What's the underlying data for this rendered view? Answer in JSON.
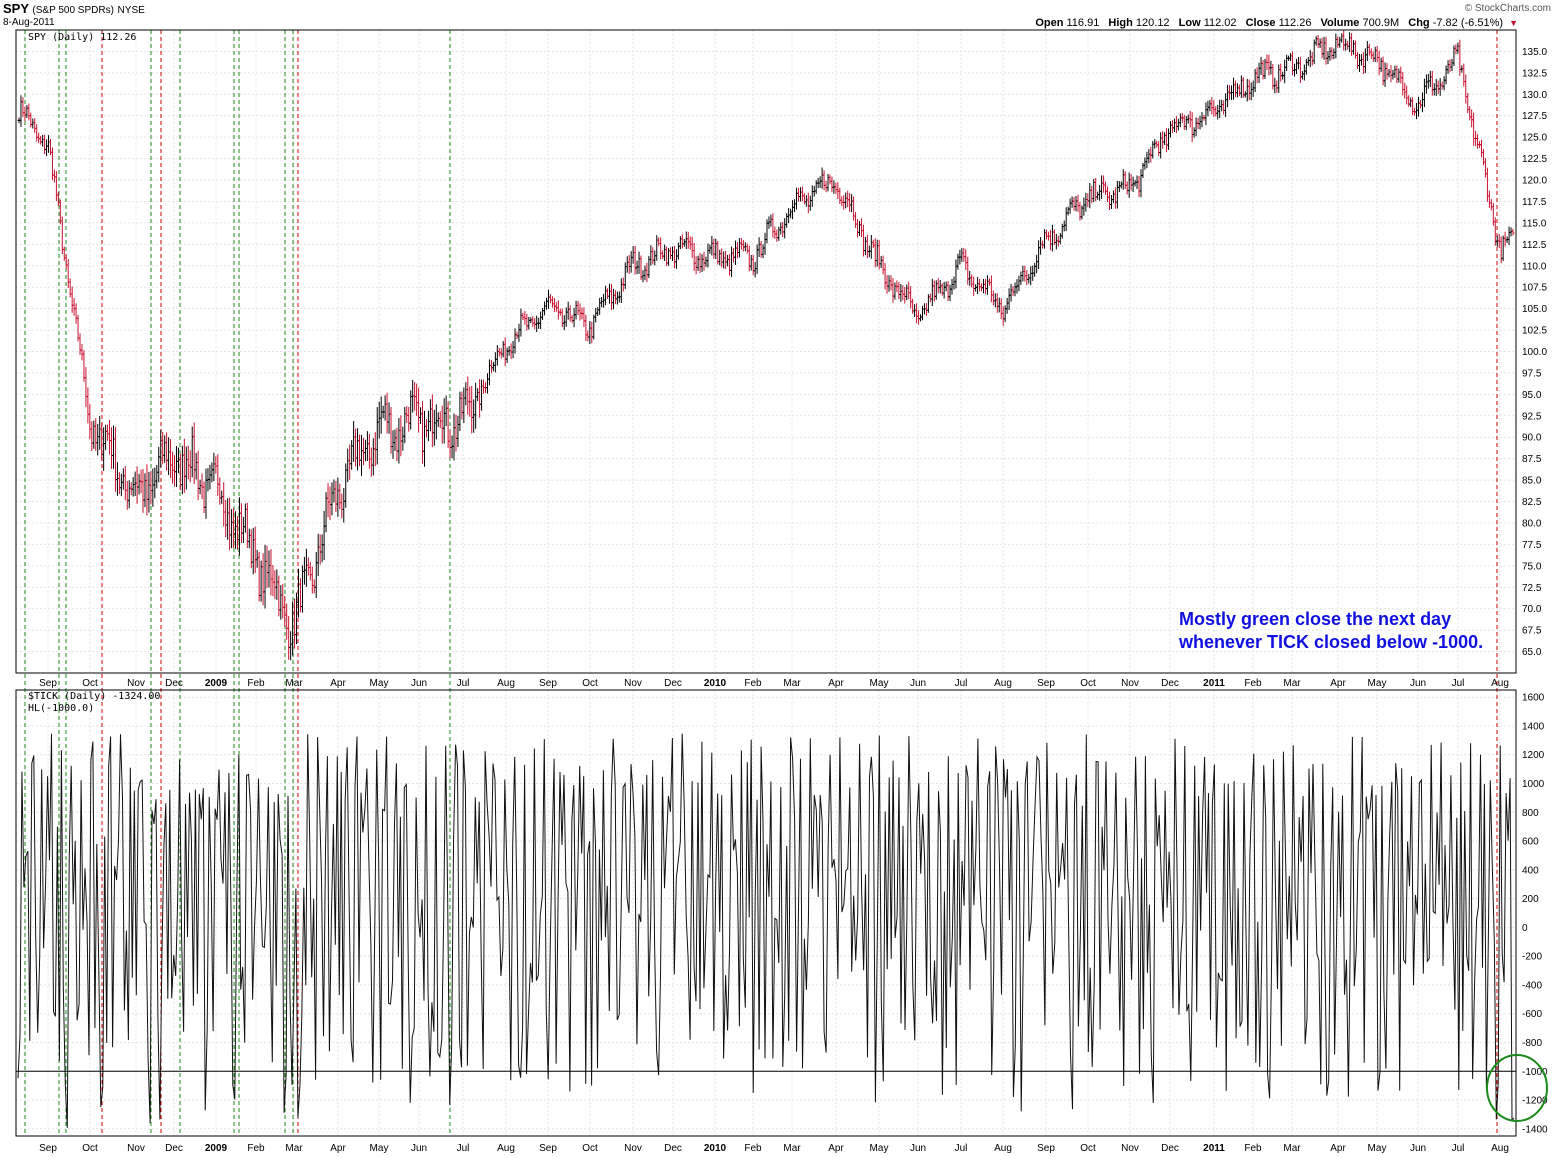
{
  "header": {
    "symbol": "SPY",
    "symbol_desc": "(S&P 500 SPDRs)",
    "exchange": "NYSE",
    "date": "8-Aug-2011",
    "brand": "© StockCharts.com",
    "open_label": "Open",
    "open": "116.91",
    "high_label": "High",
    "high": "120.12",
    "low_label": "Low",
    "low": "112.02",
    "close_label": "Close",
    "close": "112.26",
    "volume_label": "Volume",
    "volume": "700.9M",
    "chg_label": "Chg",
    "chg": "-7.82 (-6.51%)",
    "chg_direction": "down"
  },
  "annotation": {
    "line1": "Mostly green close the next day",
    "line2": "whenever TICK closed below -1000."
  },
  "colors": {
    "up_bar": "#000000",
    "down_bar": "#c8102e",
    "green_marker": "#1a8a1a",
    "red_marker": "#cc0000",
    "annotation": "#1010e0",
    "circle": "#1a8a1a"
  },
  "chart_data": [
    {
      "type": "ohlc",
      "legend": "SPY (Daily) 112.26",
      "ylim": [
        62.5,
        137.5
      ],
      "yticks": [
        "65.0",
        "67.5",
        "70.0",
        "72.5",
        "75.0",
        "77.5",
        "80.0",
        "82.5",
        "85.0",
        "87.5",
        "90.0",
        "92.5",
        "95.0",
        "97.5",
        "100.0",
        "102.5",
        "105.0",
        "107.5",
        "110.0",
        "112.5",
        "115.0",
        "117.5",
        "120.0",
        "122.5",
        "125.0",
        "127.5",
        "130.0",
        "132.5",
        "135.0"
      ],
      "x_ticks": [
        {
          "label": "Sep",
          "bold": false
        },
        {
          "label": "Oct",
          "bold": false
        },
        {
          "label": "Nov",
          "bold": false
        },
        {
          "label": "Dec",
          "bold": false
        },
        {
          "label": "2009",
          "bold": true
        },
        {
          "label": "Feb",
          "bold": false
        },
        {
          "label": "Mar",
          "bold": false
        },
        {
          "label": "Apr",
          "bold": false
        },
        {
          "label": "May",
          "bold": false
        },
        {
          "label": "Jun",
          "bold": false
        },
        {
          "label": "Jul",
          "bold": false
        },
        {
          "label": "Aug",
          "bold": false
        },
        {
          "label": "Sep",
          "bold": false
        },
        {
          "label": "Oct",
          "bold": false
        },
        {
          "label": "Nov",
          "bold": false
        },
        {
          "label": "Dec",
          "bold": false
        },
        {
          "label": "2010",
          "bold": true
        },
        {
          "label": "Feb",
          "bold": false
        },
        {
          "label": "Mar",
          "bold": false
        },
        {
          "label": "Apr",
          "bold": false
        },
        {
          "label": "May",
          "bold": false
        },
        {
          "label": "Jun",
          "bold": false
        },
        {
          "label": "Jul",
          "bold": false
        },
        {
          "label": "Aug",
          "bold": false
        },
        {
          "label": "Sep",
          "bold": false
        },
        {
          "label": "Oct",
          "bold": false
        },
        {
          "label": "Nov",
          "bold": false
        },
        {
          "label": "Dec",
          "bold": false
        },
        {
          "label": "2011",
          "bold": true
        },
        {
          "label": "Feb",
          "bold": false
        },
        {
          "label": "Mar",
          "bold": false
        },
        {
          "label": "Apr",
          "bold": false
        },
        {
          "label": "May",
          "bold": false
        },
        {
          "label": "Jun",
          "bold": false
        },
        {
          "label": "Jul",
          "bold": false
        },
        {
          "label": "Aug",
          "bold": false
        }
      ],
      "close_path": [
        [
          "Aug-2008",
          128
        ],
        [
          "Sep-2008",
          124
        ],
        [
          "Oct-2008",
          92
        ],
        [
          "Nov-2008",
          83
        ],
        [
          "Dec-2008",
          88
        ],
        [
          "Jan-2009",
          84
        ],
        [
          "Feb-2009",
          76
        ],
        [
          "Mar-2009",
          68
        ],
        [
          "Apr-2009",
          84
        ],
        [
          "May-2009",
          91
        ],
        [
          "Jun-2009",
          92
        ],
        [
          "Jul-2009",
          92
        ],
        [
          "Aug-2009",
          101
        ],
        [
          "Sep-2009",
          105
        ],
        [
          "Oct-2009",
          103
        ],
        [
          "Nov-2009",
          110
        ],
        [
          "Dec-2009",
          112
        ],
        [
          "Jan-2010",
          111
        ],
        [
          "Feb-2010",
          111
        ],
        [
          "Mar-2010",
          117
        ],
        [
          "Apr-2010",
          120
        ],
        [
          "May-2010",
          110
        ],
        [
          "Jun-2010",
          104
        ],
        [
          "Jul-2010",
          110
        ],
        [
          "Aug-2010",
          105
        ],
        [
          "Sep-2010",
          113
        ],
        [
          "Oct-2010",
          118
        ],
        [
          "Nov-2010",
          119
        ],
        [
          "Dec-2010",
          126
        ],
        [
          "Jan-2011",
          128
        ],
        [
          "Feb-2011",
          132
        ],
        [
          "Mar-2011",
          133
        ],
        [
          "Apr-2011",
          136
        ],
        [
          "May-2011",
          134
        ],
        [
          "Jun-2011",
          129
        ],
        [
          "Jul-2011",
          134
        ],
        [
          "Aug-2011",
          112.26
        ]
      ]
    },
    {
      "type": "line",
      "legend": "$TICK (Daily) -1324.00",
      "legend2": "HL(-1000.0)",
      "ylim": [
        -1450,
        1650
      ],
      "yticks": [
        "1600",
        "1400",
        "1200",
        "1000",
        "800",
        "600",
        "400",
        "200",
        "0",
        "-200",
        "-400",
        "-600",
        "-800",
        "-1000",
        "-1200",
        "-1400"
      ],
      "hline": -1000,
      "last_value": -1324
    }
  ]
}
